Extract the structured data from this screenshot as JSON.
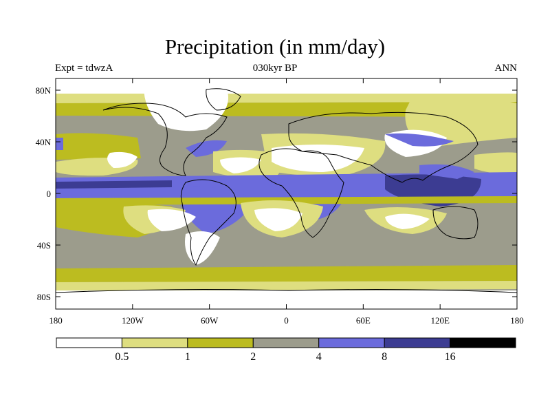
{
  "title": "Precipitation (in mm/day)",
  "experiment": "Expt = tdwzA",
  "period": "030kyr BP",
  "season": "ANN",
  "lat_ticks": [
    "80N",
    "40N",
    "0",
    "40S",
    "80S"
  ],
  "lon_ticks": [
    "180",
    "120W",
    "60W",
    "0",
    "60E",
    "120E",
    "180"
  ],
  "colorbar": {
    "levels": [
      "0.5",
      "1",
      "2",
      "4",
      "8",
      "16"
    ],
    "colors": [
      "#ffffff",
      "#dede80",
      "#bcbc20",
      "#9c9c8c",
      "#6b6bdc",
      "#3c3c92",
      "#000000"
    ]
  }
}
